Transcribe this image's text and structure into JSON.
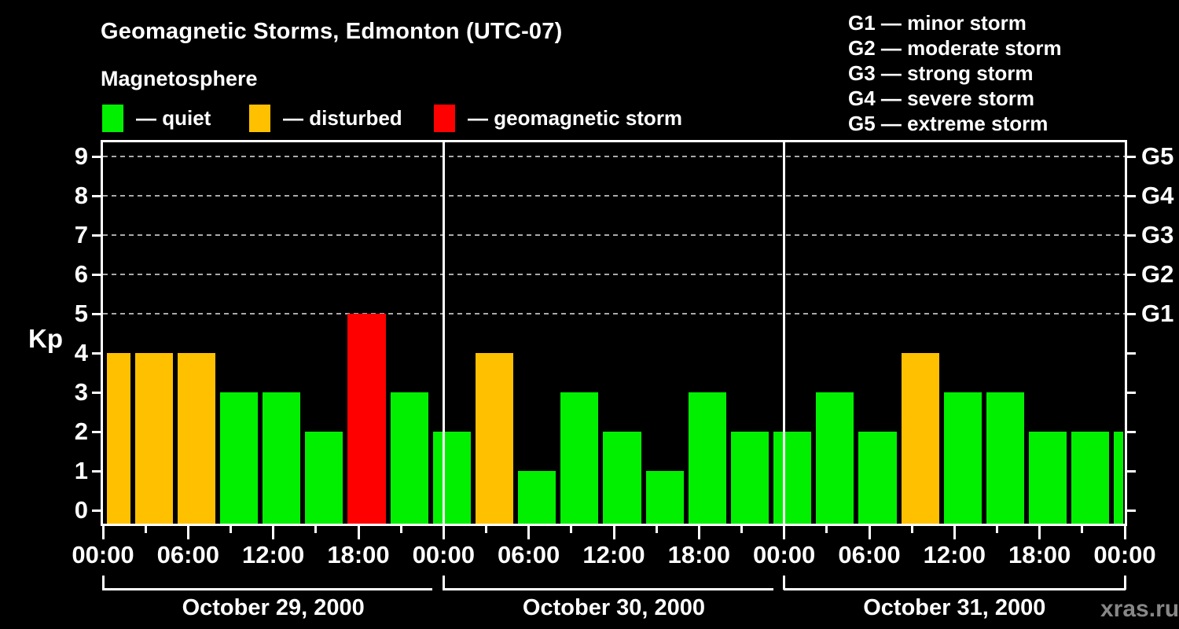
{
  "header": {
    "title": "Geomagnetic Storms, Edmonton (UTC-07)",
    "subtitle": "Magnetosphere"
  },
  "legend": {
    "items": [
      {
        "status": "quiet",
        "label": "— quiet",
        "color": "#00F000",
        "x": 130
      },
      {
        "status": "disturbed",
        "label": "— disturbed",
        "color": "#FFC000",
        "x": 317
      },
      {
        "status": "storm",
        "label": "— geomagnetic storm",
        "color": "#FF0000",
        "x": 552
      }
    ]
  },
  "g_scale_legend": {
    "items": [
      {
        "label": "G1 — minor storm"
      },
      {
        "label": "G2 — moderate storm"
      },
      {
        "label": "G3 — strong storm"
      },
      {
        "label": "G4 — severe storm"
      },
      {
        "label": "G5 — extreme storm"
      }
    ]
  },
  "watermark": "xras.ru",
  "chart_data": {
    "type": "bar",
    "title": "Geomagnetic Storms, Edmonton (UTC-07)",
    "ylabel": "Kp",
    "ylim": [
      -0.35,
      9.35
    ],
    "yticks": [
      0,
      1,
      2,
      3,
      4,
      5,
      6,
      7,
      8,
      9
    ],
    "gridlines_kp": [
      5,
      6,
      7,
      8,
      9
    ],
    "grid_on": true,
    "x_hours_total": 72,
    "x_tick_interval_hours": 3,
    "x_label_interval_hours": 6,
    "x_labels": [
      "00:00",
      "06:00",
      "12:00",
      "18:00",
      "00:00",
      "06:00",
      "12:00",
      "18:00",
      "00:00",
      "06:00",
      "12:00",
      "18:00",
      "00:00"
    ],
    "right_axis": {
      "labels": [
        {
          "kp": 5,
          "label": "G1"
        },
        {
          "kp": 6,
          "label": "G2"
        },
        {
          "kp": 7,
          "label": "G3"
        },
        {
          "kp": 8,
          "label": "G4"
        },
        {
          "kp": 9,
          "label": "G5"
        }
      ]
    },
    "days": [
      {
        "label": "October 29, 2000",
        "start_hour": 0,
        "end_hour": 24
      },
      {
        "label": "October 30, 2000",
        "start_hour": 24,
        "end_hour": 48
      },
      {
        "label": "October 31, 2000",
        "start_hour": 48,
        "end_hour": 72
      }
    ],
    "colors": {
      "quiet": "#00F000",
      "disturbed": "#FFC000",
      "storm": "#FF0000",
      "grid": "#AAAAAA",
      "axis": "#FFFFFF",
      "watermark": "#878787"
    },
    "bars": [
      {
        "start_hour": 0,
        "end_hour": 2,
        "kp": 4,
        "status": "disturbed"
      },
      {
        "start_hour": 2,
        "end_hour": 5,
        "kp": 4,
        "status": "disturbed"
      },
      {
        "start_hour": 5,
        "end_hour": 8,
        "kp": 4,
        "status": "disturbed"
      },
      {
        "start_hour": 8,
        "end_hour": 11,
        "kp": 3,
        "status": "quiet"
      },
      {
        "start_hour": 11,
        "end_hour": 14,
        "kp": 3,
        "status": "quiet"
      },
      {
        "start_hour": 14,
        "end_hour": 17,
        "kp": 2,
        "status": "quiet"
      },
      {
        "start_hour": 17,
        "end_hour": 20,
        "kp": 5,
        "status": "storm"
      },
      {
        "start_hour": 20,
        "end_hour": 23,
        "kp": 3,
        "status": "quiet"
      },
      {
        "start_hour": 23,
        "end_hour": 26,
        "kp": 2,
        "status": "quiet"
      },
      {
        "start_hour": 26,
        "end_hour": 29,
        "kp": 4,
        "status": "disturbed"
      },
      {
        "start_hour": 29,
        "end_hour": 32,
        "kp": 1,
        "status": "quiet"
      },
      {
        "start_hour": 32,
        "end_hour": 35,
        "kp": 3,
        "status": "quiet"
      },
      {
        "start_hour": 35,
        "end_hour": 38,
        "kp": 2,
        "status": "quiet"
      },
      {
        "start_hour": 38,
        "end_hour": 41,
        "kp": 1,
        "status": "quiet"
      },
      {
        "start_hour": 41,
        "end_hour": 44,
        "kp": 3,
        "status": "quiet"
      },
      {
        "start_hour": 44,
        "end_hour": 47,
        "kp": 2,
        "status": "quiet"
      },
      {
        "start_hour": 47,
        "end_hour": 50,
        "kp": 2,
        "status": "quiet"
      },
      {
        "start_hour": 50,
        "end_hour": 53,
        "kp": 3,
        "status": "quiet"
      },
      {
        "start_hour": 53,
        "end_hour": 56,
        "kp": 2,
        "status": "quiet"
      },
      {
        "start_hour": 56,
        "end_hour": 59,
        "kp": 4,
        "status": "disturbed"
      },
      {
        "start_hour": 59,
        "end_hour": 62,
        "kp": 3,
        "status": "quiet"
      },
      {
        "start_hour": 62,
        "end_hour": 65,
        "kp": 3,
        "status": "quiet"
      },
      {
        "start_hour": 65,
        "end_hour": 68,
        "kp": 2,
        "status": "quiet"
      },
      {
        "start_hour": 68,
        "end_hour": 71,
        "kp": 2,
        "status": "quiet"
      },
      {
        "start_hour": 71,
        "end_hour": 72,
        "kp": 2,
        "status": "quiet"
      }
    ]
  }
}
